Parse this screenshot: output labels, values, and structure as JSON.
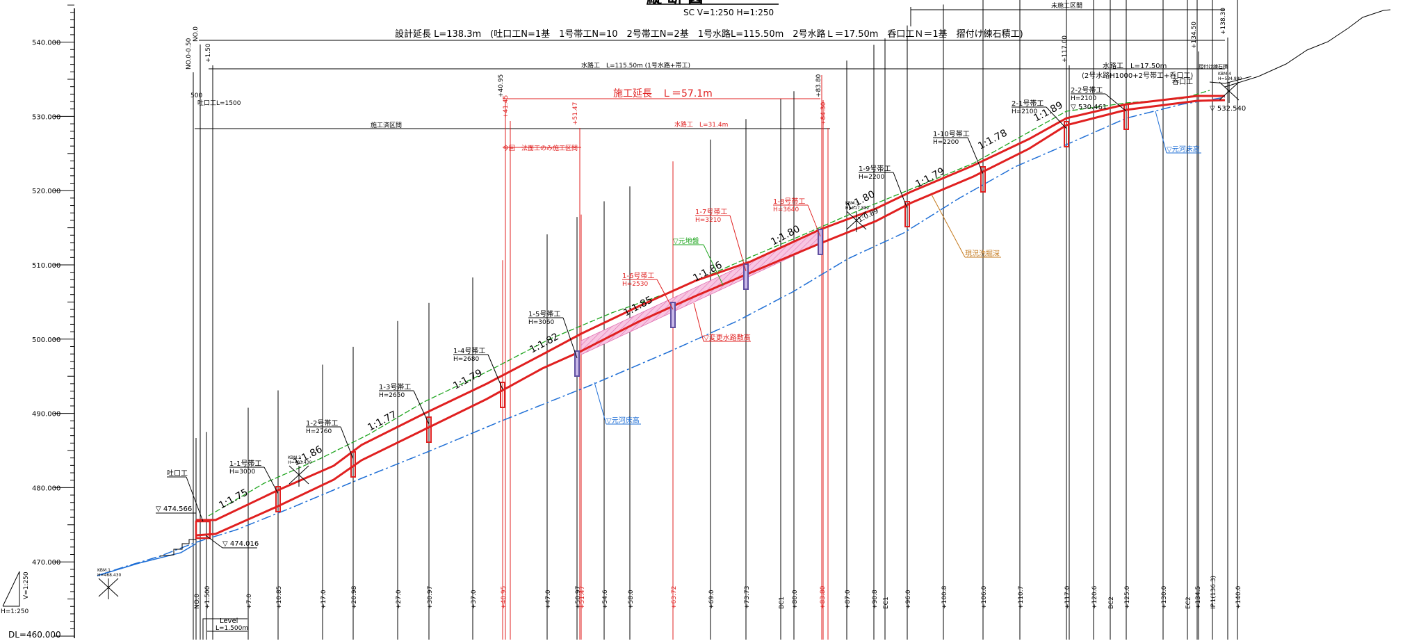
{
  "header": {
    "title": "縦 断 図",
    "scale": "SC  V=1:250  H=1:250",
    "unconstructed_section": "未施工区間",
    "design_summary": "設計延長 L=138.3m　(吐口工N=1基　1号帯工N=10　2号帯工N=2基　1号水路L=115.50m　2号水路Ｌ＝17.50m　呑口工Ｎ＝1基　摺付け練石積工)",
    "channel1_label": "水路工　L=115.50m (1号水路+帯工)",
    "channel2_label": "水路工　L=17.50m",
    "channel2_note": "(2号水路H1000+2号帯工+呑口工)",
    "stone_wall_label": "摺付け練石積",
    "construction_length": "施工延長　Ｌ＝57.1m",
    "completed_section": "施工済区間",
    "channel_partial": "水路工　L=31.4m",
    "slope_only": "今回　法面工のみ施工区間",
    "outlet_dim": "500",
    "outlet_label_top": "吐口工L=1500"
  },
  "elevation_axis": {
    "labels": [
      "540.000",
      "530.000",
      "520.000",
      "510.000",
      "500.000",
      "490.000",
      "480.000",
      "470.000"
    ],
    "datum": "DL=460.000"
  },
  "scale_triangle": {
    "vertical": "V=1:250",
    "horizontal": "H=1:250"
  },
  "level_box": {
    "line1": "Level",
    "line2": "L=1.500m"
  },
  "top_stations": [
    "NO.0-0.50",
    "NO.0",
    "+1.50",
    "+40.95",
    "+41.45",
    "+51.47",
    "+83.80",
    "+84.30",
    "+117.00",
    "+134.50",
    "+138.30"
  ],
  "stations": [
    "NO.0",
    "+1.500",
    "+7.0",
    "+10.85",
    "+17.0",
    "+20.98",
    "+27.0",
    "+30.97",
    "+37.0",
    "+40.95",
    "+47.0",
    "+50.97",
    "+51.47",
    "+54.6",
    "+58.0",
    "+63.72",
    "+69.0",
    "+73.73",
    "BC1",
    "+80.0",
    "+83.80",
    "+87.0",
    "+90.8",
    "EC1",
    "+96.0",
    "+100.8",
    "+106.0",
    "+110.7",
    "+117.0",
    "+120.6",
    "BC2",
    "+125.0",
    "+130.0",
    "EC2",
    "+134.5",
    "IP.1(136.3)",
    "+140.0"
  ],
  "structures": [
    {
      "name": "1-1号帯工",
      "h": "H=3000"
    },
    {
      "name": "1-2号帯工",
      "h": "H=2760"
    },
    {
      "name": "1-3号帯工",
      "h": "H=2650"
    },
    {
      "name": "1-4号帯工",
      "h": "H=2680"
    },
    {
      "name": "1-5号帯工",
      "h": "H=3060"
    },
    {
      "name": "1-6号帯工",
      "h": "H=2530"
    },
    {
      "name": "1-7号帯工",
      "h": "H=3210"
    },
    {
      "name": "1-8号帯工",
      "h": "H=3640"
    },
    {
      "name": "1-9号帯工",
      "h": "H=2200"
    },
    {
      "name": "1-10号帯工",
      "h": "H=2200"
    },
    {
      "name": "2-1号帯工",
      "h": "H=2100"
    },
    {
      "name": "2-2号帯工",
      "h": "H=2100"
    }
  ],
  "slopes": [
    "1:1.75",
    "1:1.86",
    "1:1.77",
    "1:1.79",
    "1:1.82",
    "1:1.85",
    "1:1.86",
    "1:1.80",
    "1:1.80",
    "1:1.79",
    "1:1.78",
    "1:1.89"
  ],
  "annotations": {
    "outlet": "吐口工",
    "inlet": "呑口工",
    "wl_start": "▽ 474.566",
    "wl_start2": "▽ 474.016",
    "wl_end": "▽ 530.461",
    "wl_end2": "▽ 532.540",
    "original_ground": "▽元地盤",
    "original_riverbed": "▽元河床高",
    "original_riverbed2": "▽元河床高",
    "changed_channel": "▽変更水路敷高",
    "current_scour": "現況洗掘深",
    "kbm1": "KBM.1",
    "kbm1_h": "H=468.430",
    "kbm2": "KBM.2",
    "kbm2_h": "H=483.430",
    "kbm3": "KBM.3",
    "kbm3_h": "H=517.882",
    "kbm4": "KBM.4",
    "kbm4_h": "H=534.880",
    "kbm_slope": "1:0.89"
  },
  "colors": {
    "red": "#e02020",
    "blue": "#1f6fd6",
    "green": "#1fa51f",
    "orange": "#c47a1e",
    "pink": "#f3a6d0"
  }
}
